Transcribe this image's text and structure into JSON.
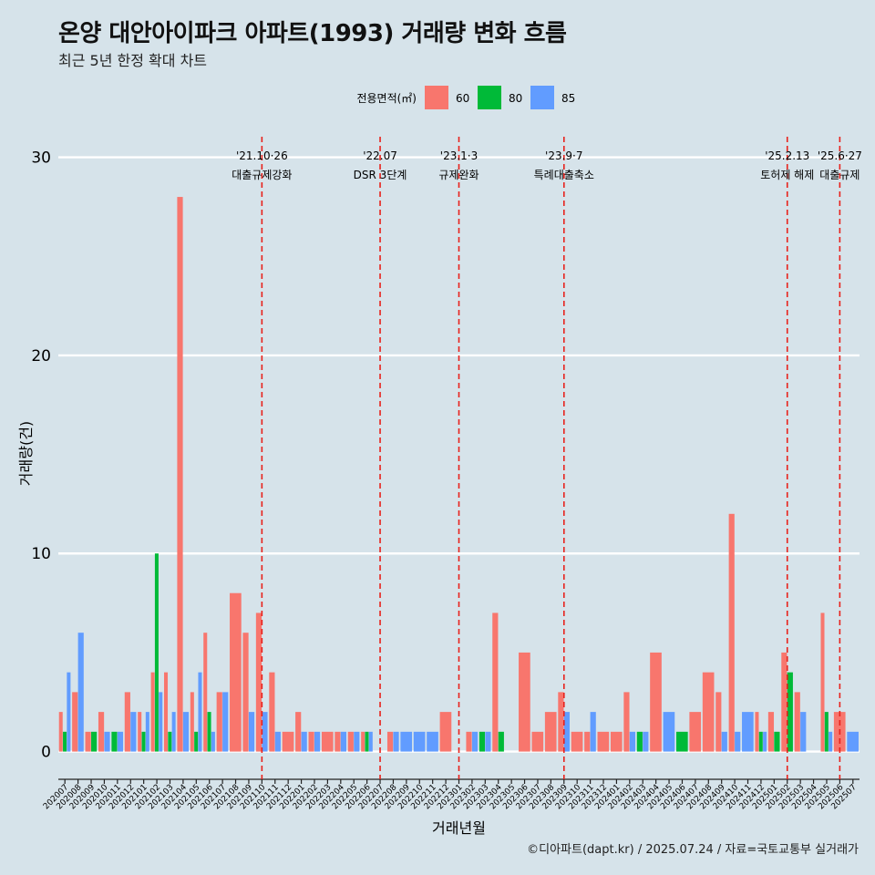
{
  "title": "온양 대안아이파크 아파트(1993) 거래량 변화 흐름",
  "subtitle": "최근 5년 한정 확대 차트",
  "caption": "©디아파트(dapt.kr) / 2025.07.24 / 자료=국토교통부 실거래가",
  "colors": {
    "background": "#d6e3ea",
    "grid": "#ffffff",
    "event_line": "#e8211b",
    "s60": "#f8766d",
    "s80": "#00ba38",
    "s85": "#619cff"
  },
  "chart_data": {
    "type": "bar",
    "title": "온양 대안아이파크 아파트(1993) 거래량 변화 흐름",
    "subtitle": "최근 5년 한정 확대 차트",
    "xlabel": "거래년월",
    "ylabel": "거래량(건)",
    "ylim": [
      -1.4,
      31.5
    ],
    "yticks": [
      0,
      10,
      20,
      30
    ],
    "grid": true,
    "legend": {
      "title": "전용면적(㎡)",
      "position": "top"
    },
    "categories": [
      "202007",
      "202008",
      "202009",
      "202010",
      "202011",
      "202012",
      "202101",
      "202102",
      "202103",
      "202104",
      "202105",
      "202106",
      "202107",
      "202108",
      "202109",
      "202110",
      "202111",
      "202112",
      "202201",
      "202202",
      "202203",
      "202204",
      "202205",
      "202206",
      "202207",
      "202208",
      "202209",
      "202210",
      "202211",
      "202212",
      "202301",
      "202302",
      "202303",
      "202304",
      "202305",
      "202306",
      "202307",
      "202308",
      "202309",
      "202310",
      "202311",
      "202312",
      "202401",
      "202402",
      "202403",
      "202404",
      "202405",
      "202406",
      "202407",
      "202408",
      "202409",
      "202410",
      "202411",
      "202412",
      "202501",
      "202502",
      "202503",
      "202504",
      "202505",
      "202506",
      "202507"
    ],
    "series": [
      {
        "name": "60",
        "color": "#f8766d",
        "values": [
          2,
          3,
          1,
          2,
          0,
          3,
          2,
          4,
          4,
          28,
          3,
          6,
          3,
          8,
          6,
          7,
          4,
          1,
          2,
          1,
          1,
          1,
          1,
          1,
          0,
          1,
          0,
          0,
          0,
          2,
          0,
          1,
          0,
          7,
          0,
          5,
          1,
          2,
          3,
          1,
          1,
          1,
          1,
          3,
          0,
          5,
          0,
          0,
          2,
          4,
          3,
          12,
          0,
          2,
          2,
          5,
          3,
          0,
          7,
          2,
          0
        ]
      },
      {
        "name": "80",
        "color": "#00ba38",
        "values": [
          1,
          0,
          1,
          0,
          1,
          0,
          1,
          10,
          1,
          0,
          1,
          2,
          0,
          0,
          0,
          0,
          0,
          0,
          0,
          0,
          0,
          0,
          0,
          1,
          0,
          0,
          0,
          0,
          0,
          0,
          0,
          0,
          1,
          1,
          0,
          0,
          0,
          0,
          0,
          0,
          0,
          0,
          0,
          0,
          1,
          0,
          0,
          1,
          0,
          0,
          0,
          0,
          0,
          1,
          1,
          4,
          0,
          0,
          2,
          0,
          0
        ]
      },
      {
        "name": "85",
        "color": "#619cff",
        "values": [
          4,
          6,
          0,
          1,
          1,
          2,
          2,
          3,
          2,
          2,
          4,
          1,
          3,
          0,
          2,
          2,
          1,
          0,
          1,
          1,
          0,
          1,
          1,
          1,
          0,
          1,
          1,
          1,
          1,
          0,
          0,
          1,
          1,
          0,
          0,
          0,
          0,
          0,
          2,
          0,
          2,
          0,
          0,
          1,
          1,
          0,
          2,
          0,
          0,
          0,
          1,
          1,
          2,
          1,
          0,
          0,
          2,
          0,
          1,
          0,
          1
        ]
      }
    ],
    "events": [
      {
        "date": "'21.10·26",
        "label": "대출규제강화",
        "at": "202110"
      },
      {
        "date": "'22.07",
        "label": "DSR 3단계",
        "at": "202207"
      },
      {
        "date": "'23.1·3",
        "label": "규제완화",
        "at": "202301"
      },
      {
        "date": "'23.9·7",
        "label": "특례대출축소",
        "at": "202309"
      },
      {
        "date": "'25.2.13",
        "label": "토허제 해제",
        "at": "202502"
      },
      {
        "date": "'25.6·27",
        "label": "대출규제",
        "at": "202506"
      }
    ]
  }
}
